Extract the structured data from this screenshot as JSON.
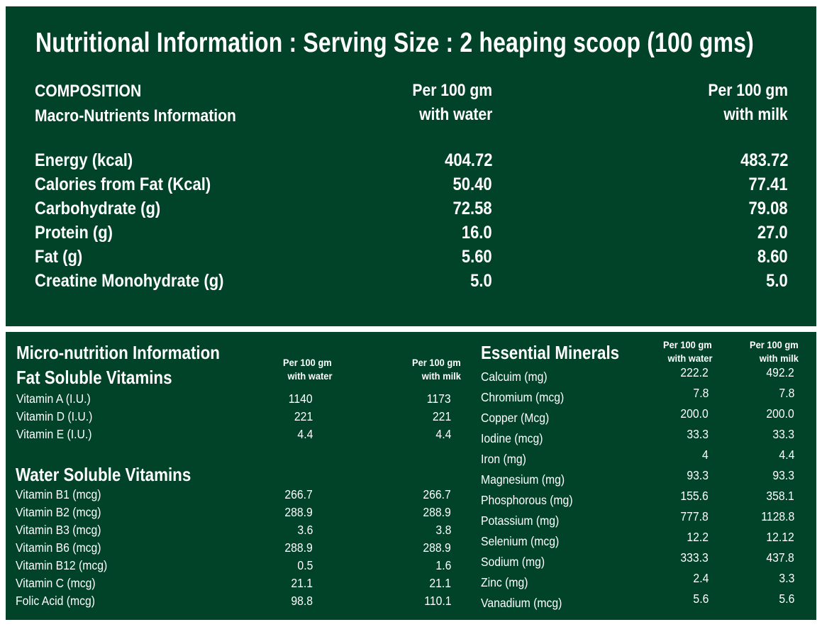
{
  "title": "Nutritional Information : Serving Size : 2 heaping scoop (100 gms)",
  "macro": {
    "heading1": "COMPOSITION",
    "heading2": "Macro-Nutrients Information",
    "col_water_1": "Per 100 gm",
    "col_water_2": "with water",
    "col_milk_1": "Per 100 gm",
    "col_milk_2": "with milk",
    "rows": [
      {
        "label": "Energy (kcal)",
        "water": "404.72",
        "milk": "483.72"
      },
      {
        "label": "Calories from Fat (Kcal)",
        "water": "50.40",
        "milk": "77.41"
      },
      {
        "label": "Carbohydrate  (g)",
        "water": "72.58",
        "milk": "79.08"
      },
      {
        "label": "Protein (g)",
        "water": "16.0",
        "milk": "27.0"
      },
      {
        "label": "Fat (g)",
        "water": "5.60",
        "milk": "8.60"
      },
      {
        "label": "Creatine Monohydrate (g)",
        "water": "5.0",
        "milk": "5.0"
      }
    ]
  },
  "micro": {
    "heading": "Micro-nutrition Information",
    "fat_heading": "Fat Soluble Vitamins",
    "col_water_1": "Per 100 gm",
    "col_water_2": "with water",
    "col_milk_1": "Per 100 gm",
    "col_milk_2": "with milk",
    "fat_rows": [
      {
        "label": "Vitamin A (I.U.)",
        "water": "1140",
        "milk": "1173"
      },
      {
        "label": "Vitamin D (I.U.)",
        "water": "221",
        "milk": "221"
      },
      {
        "label": "Vitamin E (I.U.)",
        "water": "4.4",
        "milk": "4.4"
      }
    ],
    "water_heading": "Water Soluble Vitamins",
    "water_rows": [
      {
        "label": "Vitamin B1 (mcg)",
        "water": "266.7",
        "milk": "266.7"
      },
      {
        "label": "Vitamin B2 (mcg)",
        "water": "288.9",
        "milk": "288.9"
      },
      {
        "label": "Vitamin B3 (mcg)",
        "water": "3.6",
        "milk": "3.8"
      },
      {
        "label": "Vitamin B6 (mcg)",
        "water": "288.9",
        "milk": "288.9"
      },
      {
        "label": "Vitamin B12 (mcg)",
        "water": "0.5",
        "milk": "1.6"
      },
      {
        "label": "Vitamin C (mcg)",
        "water": "21.1",
        "milk": "21.1"
      },
      {
        "label": "Folic Acid (mcg)",
        "water": "98.8",
        "milk": "110.1"
      }
    ]
  },
  "minerals": {
    "heading": "Essential Minerals",
    "col_water_1": "Per 100 gm",
    "col_water_2": "with water",
    "col_milk_1": "Per 100 gm",
    "col_milk_2": "with milk",
    "rows": [
      {
        "label": "Calcuim (mg)",
        "water": "222.2",
        "milk": "492.2"
      },
      {
        "label": "Chromium (mcg)",
        "water": "7.8",
        "milk": "7.8"
      },
      {
        "label": "Copper (Mcg)",
        "water": "200.0",
        "milk": "200.0"
      },
      {
        "label": "Iodine (mcg)",
        "water": "33.3",
        "milk": "33.3"
      },
      {
        "label": "Iron (mg)",
        "water": "4",
        "milk": "4.4"
      },
      {
        "label": "Magnesium (mg)",
        "water": "93.3",
        "milk": "93.3"
      },
      {
        "label": "Phosphorous (mg)",
        "water": "155.6",
        "milk": "358.1"
      },
      {
        "label": "Potassium (mg)",
        "water": "777.8",
        "milk": "1128.8"
      },
      {
        "label": "Selenium (mcg)",
        "water": "12.2",
        "milk": "12.12"
      },
      {
        "label": "Sodium (mg)",
        "water": "333.3",
        "milk": "437.8"
      },
      {
        "label": "Zinc (mg)",
        "water": "2.4",
        "milk": "3.3"
      },
      {
        "label": "Vanadium (mcg)",
        "water": "5.6",
        "milk": "5.6"
      }
    ]
  },
  "colors": {
    "panel": "#004328",
    "text": "#ffffff",
    "background": "#ffffff"
  }
}
